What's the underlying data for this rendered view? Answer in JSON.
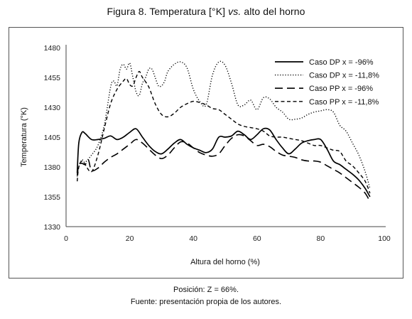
{
  "title_prefix": "Figura 8. Temperatura [°K] ",
  "title_vs": "vs.",
  "title_suffix": " alto del horno",
  "caption_position": "Posición: Z = 66%.",
  "caption_source": "Fuente: presentación propia de los autores.",
  "chart_data": {
    "type": "line",
    "title": "Figura 8. Temperatura [°K] vs. alto del horno",
    "xlabel": "Altura del horno (%)",
    "ylabel": "Temperatura (°K)",
    "xlim": [
      0,
      100
    ],
    "ylim": [
      1330,
      1480
    ],
    "xticks": [
      0,
      20,
      40,
      60,
      80,
      100
    ],
    "yticks": [
      1330,
      1355,
      1380,
      1405,
      1430,
      1455,
      1480
    ],
    "grid": false,
    "legend_position": "top-right",
    "series": [
      {
        "name": "Caso DP x = -96%",
        "dash": "solid",
        "color": "#000000",
        "x": [
          3.5,
          4,
          5,
          6,
          8,
          10,
          12,
          14,
          16,
          18,
          20,
          22,
          24,
          26,
          28,
          30,
          32,
          34,
          36,
          38,
          40,
          42,
          44,
          46,
          48,
          50,
          52,
          54,
          56,
          58,
          60,
          62,
          64,
          66,
          68,
          70,
          72,
          74,
          76,
          78,
          80,
          82,
          84,
          86,
          88,
          90,
          92,
          94,
          95.5
        ],
        "y": [
          1375,
          1400,
          1409,
          1408,
          1403,
          1403,
          1404,
          1406,
          1403,
          1405,
          1409,
          1412,
          1405,
          1398,
          1393,
          1391,
          1395,
          1400,
          1403,
          1399,
          1396,
          1394,
          1392,
          1395,
          1405,
          1405,
          1406,
          1410,
          1407,
          1403,
          1407,
          1412,
          1411,
          1403,
          1396,
          1391,
          1395,
          1400,
          1402,
          1403,
          1403,
          1395,
          1385,
          1382,
          1378,
          1374,
          1369,
          1362,
          1355
        ]
      },
      {
        "name": "Caso DP x = -11,8%",
        "dash": "dotted",
        "color": "#000000",
        "x": [
          3.5,
          4,
          5,
          6,
          8,
          10,
          12,
          14,
          15,
          16,
          17,
          18,
          19,
          20,
          21,
          22,
          23,
          24,
          25,
          26,
          27,
          28,
          29,
          30,
          31,
          32,
          34,
          36,
          38,
          40,
          42,
          44,
          46,
          48,
          50,
          52,
          54,
          56,
          58,
          60,
          62,
          64,
          66,
          68,
          70,
          72,
          74,
          76,
          78,
          80,
          82,
          84,
          86,
          88,
          90,
          92,
          94,
          95.5
        ],
        "y": [
          1372,
          1380,
          1386,
          1384,
          1390,
          1398,
          1415,
          1447,
          1452,
          1448,
          1462,
          1466,
          1462,
          1467,
          1455,
          1443,
          1440,
          1450,
          1455,
          1462,
          1462,
          1455,
          1448,
          1448,
          1452,
          1460,
          1466,
          1468,
          1463,
          1445,
          1435,
          1432,
          1457,
          1468,
          1465,
          1450,
          1432,
          1432,
          1436,
          1428,
          1438,
          1437,
          1430,
          1426,
          1420,
          1420,
          1421,
          1424,
          1426,
          1427,
          1428,
          1426,
          1415,
          1410,
          1400,
          1390,
          1376,
          1362
        ]
      },
      {
        "name": "Caso PP x = -96%",
        "dash": "long-dash",
        "color": "#000000",
        "x": [
          3.5,
          4,
          5,
          6,
          7,
          8,
          10,
          12,
          14,
          16,
          18,
          20,
          22,
          24,
          26,
          28,
          30,
          32,
          34,
          36,
          38,
          40,
          42,
          44,
          46,
          48,
          50,
          52,
          54,
          56,
          58,
          60,
          62,
          64,
          66,
          68,
          70,
          72,
          74,
          76,
          78,
          80,
          82,
          84,
          86,
          88,
          90,
          92,
          94,
          95.5
        ],
        "y": [
          1373,
          1382,
          1383,
          1382,
          1386,
          1377,
          1379,
          1384,
          1388,
          1391,
          1395,
          1399,
          1403,
          1400,
          1395,
          1390,
          1387,
          1390,
          1396,
          1401,
          1400,
          1396,
          1392,
          1390,
          1389,
          1391,
          1398,
          1404,
          1407,
          1406,
          1402,
          1398,
          1399,
          1397,
          1393,
          1390,
          1389,
          1388,
          1386,
          1385,
          1385,
          1384,
          1381,
          1378,
          1375,
          1371,
          1367,
          1363,
          1358,
          1351
        ]
      },
      {
        "name": "Caso PP x = -11,8%",
        "dash": "short-dash",
        "color": "#000000",
        "x": [
          3.5,
          4,
          5,
          6,
          8,
          10,
          12,
          14,
          16,
          18,
          19,
          20,
          21,
          22,
          23,
          24,
          26,
          28,
          30,
          32,
          34,
          36,
          38,
          40,
          42,
          44,
          46,
          48,
          50,
          52,
          54,
          56,
          58,
          60,
          62,
          64,
          66,
          68,
          70,
          72,
          74,
          76,
          78,
          80,
          82,
          84,
          86,
          88,
          90,
          92,
          94,
          95.5
        ],
        "y": [
          1368,
          1380,
          1385,
          1382,
          1376,
          1390,
          1412,
          1433,
          1445,
          1452,
          1454,
          1449,
          1448,
          1455,
          1460,
          1455,
          1447,
          1433,
          1424,
          1422,
          1425,
          1430,
          1433,
          1435,
          1434,
          1432,
          1429,
          1428,
          1424,
          1420,
          1416,
          1414,
          1413,
          1412,
          1410,
          1406,
          1405,
          1405,
          1404,
          1403,
          1402,
          1400,
          1398,
          1398,
          1396,
          1394,
          1393,
          1385,
          1381,
          1375,
          1368,
          1358
        ]
      }
    ]
  }
}
